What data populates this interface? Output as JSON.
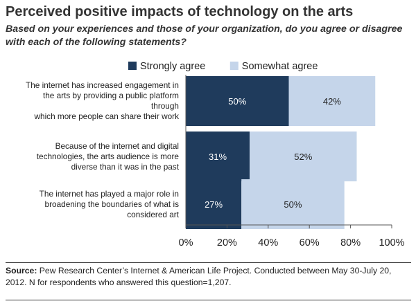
{
  "header": {
    "title": "Perceived positive impacts of technology on the arts",
    "subtitle": "Based on your experiences and those of your organization, do you agree or disagree with each of the following statements?"
  },
  "footer": {
    "source_label": "Source:",
    "source_text": "Pew Research Center’s Internet & American Life Project. Conducted between May 30-July 20, 2012. N for respondents who answered this question=1,207."
  },
  "chart_data": {
    "type": "bar",
    "orientation": "horizontal",
    "stacked": true,
    "categories": [
      [
        "The internet has increased engagement in",
        "the arts by providing a public platform",
        "through",
        "which more people can share their work"
      ],
      [
        "Because of the internet and digital",
        "technologies, the arts audience is more",
        "diverse than it was in the past"
      ],
      [
        "The internet has played a major role in",
        "broadening the boundaries of what is",
        "considered art"
      ]
    ],
    "series": [
      {
        "name": "Strongly agree",
        "color": "#1f3b5c",
        "values": [
          50,
          31,
          27
        ],
        "labels": [
          "50%",
          "31%",
          "27%"
        ],
        "label_color": "#ffffff"
      },
      {
        "name": "Somewhat agree",
        "color": "#c5d5ea",
        "values": [
          42,
          52,
          50
        ],
        "labels": [
          "42%",
          "52%",
          "50%"
        ],
        "label_color": "#222222"
      }
    ],
    "xlim": [
      0,
      100
    ],
    "x_ticks": [
      0,
      20,
      40,
      60,
      80,
      100
    ],
    "x_tick_labels": [
      "0%",
      "20%",
      "40%",
      "60%",
      "80%",
      "100%"
    ],
    "legend_position": "top-center",
    "grid": false
  }
}
